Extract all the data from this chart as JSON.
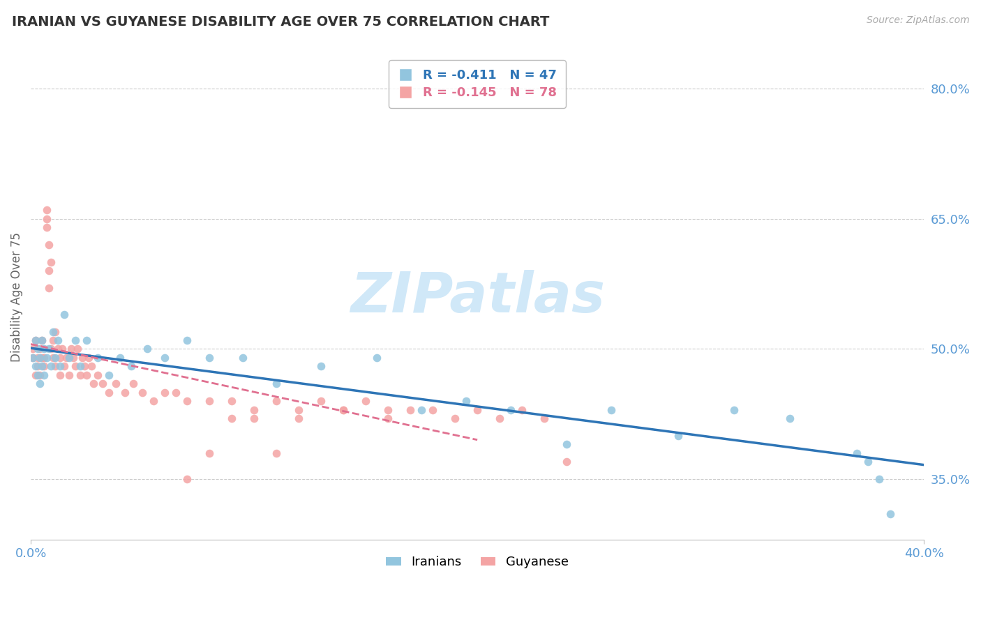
{
  "title": "IRANIAN VS GUYANESE DISABILITY AGE OVER 75 CORRELATION CHART",
  "source_text": "Source: ZipAtlas.com",
  "ylabel": "Disability Age Over 75",
  "xlim": [
    0.0,
    0.4
  ],
  "ylim": [
    0.28,
    0.84
  ],
  "ytick_values": [
    0.35,
    0.5,
    0.65,
    0.8
  ],
  "ytick_labels": [
    "35.0%",
    "50.0%",
    "65.0%",
    "80.0%"
  ],
  "iranian_color": "#92c5de",
  "guyanese_color": "#f4a4a4",
  "iranian_R": -0.411,
  "iranian_N": 47,
  "guyanese_R": -0.145,
  "guyanese_N": 78,
  "watermark": "ZIPatlas",
  "watermark_color": "#d0e8f8",
  "background_color": "#ffffff",
  "grid_color": "#cccccc",
  "axis_label_color": "#5b9bd5",
  "reg_iranian_color": "#2e75b6",
  "reg_guyanese_color": "#e07090",
  "iranian_x": [
    0.001,
    0.002,
    0.002,
    0.003,
    0.003,
    0.004,
    0.004,
    0.005,
    0.005,
    0.006,
    0.006,
    0.007,
    0.008,
    0.009,
    0.01,
    0.011,
    0.012,
    0.013,
    0.015,
    0.017,
    0.02,
    0.022,
    0.025,
    0.03,
    0.035,
    0.04,
    0.045,
    0.052,
    0.06,
    0.07,
    0.08,
    0.095,
    0.11,
    0.13,
    0.155,
    0.175,
    0.195,
    0.215,
    0.24,
    0.26,
    0.29,
    0.315,
    0.34,
    0.37,
    0.375,
    0.38,
    0.385
  ],
  "iranian_y": [
    0.49,
    0.48,
    0.51,
    0.47,
    0.5,
    0.46,
    0.49,
    0.48,
    0.51,
    0.5,
    0.47,
    0.49,
    0.5,
    0.48,
    0.52,
    0.49,
    0.51,
    0.48,
    0.54,
    0.49,
    0.51,
    0.48,
    0.51,
    0.49,
    0.47,
    0.49,
    0.48,
    0.5,
    0.49,
    0.51,
    0.49,
    0.49,
    0.46,
    0.48,
    0.49,
    0.43,
    0.44,
    0.43,
    0.39,
    0.43,
    0.4,
    0.43,
    0.42,
    0.38,
    0.37,
    0.35,
    0.31
  ],
  "guyanese_x": [
    0.001,
    0.001,
    0.002,
    0.002,
    0.003,
    0.003,
    0.004,
    0.004,
    0.005,
    0.005,
    0.006,
    0.006,
    0.007,
    0.007,
    0.007,
    0.008,
    0.008,
    0.008,
    0.009,
    0.009,
    0.01,
    0.01,
    0.011,
    0.011,
    0.012,
    0.013,
    0.013,
    0.014,
    0.015,
    0.016,
    0.017,
    0.018,
    0.019,
    0.02,
    0.021,
    0.022,
    0.023,
    0.024,
    0.025,
    0.026,
    0.027,
    0.028,
    0.03,
    0.032,
    0.035,
    0.038,
    0.042,
    0.046,
    0.05,
    0.055,
    0.06,
    0.065,
    0.07,
    0.08,
    0.09,
    0.1,
    0.11,
    0.12,
    0.13,
    0.14,
    0.15,
    0.16,
    0.17,
    0.18,
    0.19,
    0.2,
    0.21,
    0.22,
    0.23,
    0.24,
    0.16,
    0.14,
    0.12,
    0.11,
    0.1,
    0.09,
    0.08,
    0.07
  ],
  "guyanese_y": [
    0.49,
    0.5,
    0.47,
    0.51,
    0.48,
    0.49,
    0.5,
    0.47,
    0.49,
    0.51,
    0.49,
    0.48,
    0.65,
    0.66,
    0.64,
    0.62,
    0.59,
    0.57,
    0.6,
    0.5,
    0.49,
    0.51,
    0.48,
    0.52,
    0.5,
    0.49,
    0.47,
    0.5,
    0.48,
    0.49,
    0.47,
    0.5,
    0.49,
    0.48,
    0.5,
    0.47,
    0.49,
    0.48,
    0.47,
    0.49,
    0.48,
    0.46,
    0.47,
    0.46,
    0.45,
    0.46,
    0.45,
    0.46,
    0.45,
    0.44,
    0.45,
    0.45,
    0.44,
    0.44,
    0.44,
    0.43,
    0.44,
    0.43,
    0.44,
    0.43,
    0.44,
    0.42,
    0.43,
    0.43,
    0.42,
    0.43,
    0.42,
    0.43,
    0.42,
    0.37,
    0.43,
    0.43,
    0.42,
    0.38,
    0.42,
    0.42,
    0.38,
    0.35
  ]
}
